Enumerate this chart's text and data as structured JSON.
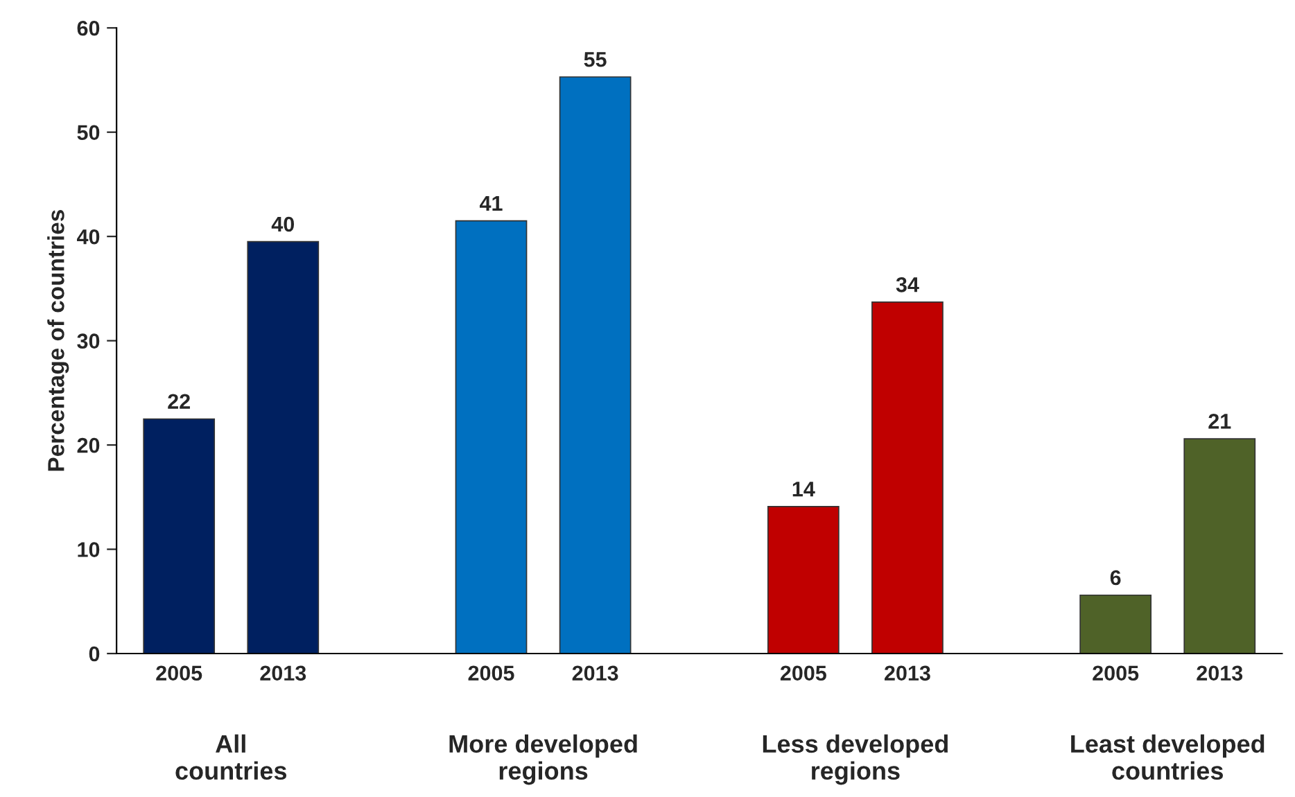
{
  "chart_data": {
    "type": "bar",
    "ylabel": "Percentage of countries",
    "categories": [
      "2005",
      "2013",
      null,
      "2005",
      "2013",
      null,
      "2005",
      "2013",
      null,
      "2005",
      "2013"
    ],
    "values": [
      22.5,
      39.5,
      null,
      41.5,
      55.3,
      null,
      14.1,
      33.7,
      null,
      5.6,
      20.6
    ],
    "value_labels": [
      "22",
      "40",
      null,
      "41",
      "55",
      null,
      "14",
      "34",
      null,
      "6",
      "21"
    ],
    "colors": [
      "#002060",
      "#002060",
      null,
      "#0070c0",
      "#0070c0",
      null,
      "#c00000",
      "#c00000",
      null,
      "#4f6228",
      "#4f6228"
    ],
    "annotations": [
      "All\ncountries",
      "More developed\nregions",
      "Less developed\nregions",
      "Least developed\ncountries"
    ],
    "ylim": [
      0,
      60
    ],
    "yticks": [
      0,
      10,
      20,
      30,
      40,
      50,
      60
    ],
    "grid": false,
    "legend": false
  }
}
